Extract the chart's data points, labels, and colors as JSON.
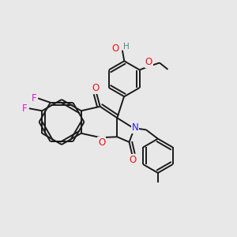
{
  "bg_color": "#e8e8e8",
  "bond_color": "#1a1a1a",
  "bond_width": 1.4,
  "atom_colors": {
    "O": "#ee1111",
    "N": "#2222cc",
    "F": "#cc22cc",
    "H_gray": "#4a8888",
    "C": "#1a1a1a"
  },
  "font_size_atom": 8.5
}
